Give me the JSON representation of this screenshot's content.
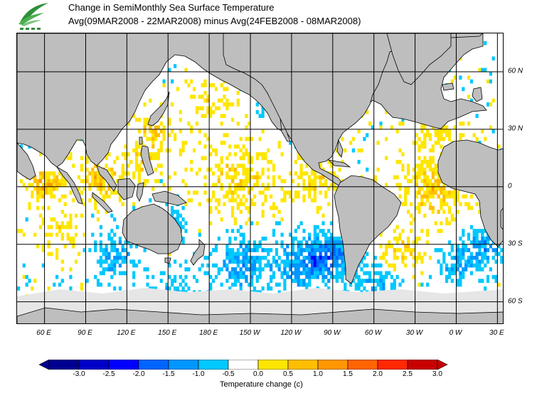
{
  "title": {
    "line1": "Change in SemiMonthly Sea Surface Temperature",
    "line2": "Avg(09MAR2008 - 22MAR2008) minus Avg(24FEB2008 - 08MAR2008)"
  },
  "map": {
    "projection": "cylindrical equidistant",
    "lon_range_deg_east": [
      40,
      395
    ],
    "lat_range_deg": [
      -72,
      80
    ],
    "land_color": "#bebebe",
    "sea_ice_color": "#e6e6e6",
    "grid_lines": "30-degree lat/lon grid"
  },
  "lon_labels": [
    "60 E",
    "90 E",
    "120 E",
    "150 E",
    "180 E",
    "150 W",
    "120 W",
    "90 W",
    "60 W",
    "30 W",
    "0 W",
    "30 E"
  ],
  "lat_labels": [
    "60 N",
    "30 N",
    "0",
    "30 S",
    "60 S"
  ],
  "colorbar": {
    "title": "Temperature change  (c)",
    "tick_labels": [
      "-3.0",
      "-2.5",
      "-2.0",
      "-1.5",
      "-1.0",
      "-0.5",
      "0.0",
      "0.5",
      "1.0",
      "1.5",
      "2.0",
      "2.5",
      "3.0"
    ],
    "bins": [
      {
        "range": [
          -3.5,
          -3.0
        ],
        "color": "#000090"
      },
      {
        "range": [
          -3.0,
          -2.5
        ],
        "color": "#0000c8"
      },
      {
        "range": [
          -2.5,
          -2.0
        ],
        "color": "#0000ff"
      },
      {
        "range": [
          -2.0,
          -1.5
        ],
        "color": "#0064ff"
      },
      {
        "range": [
          -1.5,
          -1.0
        ],
        "color": "#0096ff"
      },
      {
        "range": [
          -1.0,
          -0.5
        ],
        "color": "#00c8ff"
      },
      {
        "range": [
          -0.5,
          0.5
        ],
        "color": "#ffffff"
      },
      {
        "range": [
          0.5,
          1.0
        ],
        "color": "#ffe600"
      },
      {
        "range": [
          1.0,
          1.5
        ],
        "color": "#ffbe00"
      },
      {
        "range": [
          1.5,
          2.0
        ],
        "color": "#ff9600"
      },
      {
        "range": [
          2.0,
          2.5
        ],
        "color": "#ff6400"
      },
      {
        "range": [
          2.5,
          3.0
        ],
        "color": "#ff2800"
      },
      {
        "range": [
          3.0,
          3.5
        ],
        "color": "#c80000"
      }
    ]
  }
}
